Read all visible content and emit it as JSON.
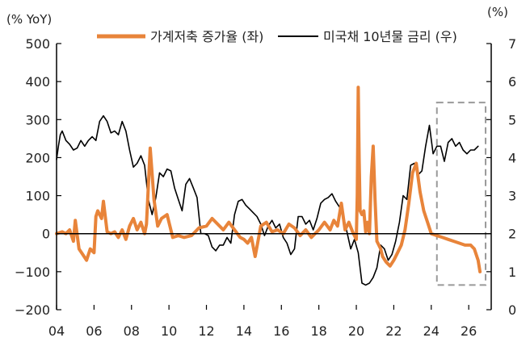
{
  "chart_data": {
    "type": "line",
    "title": "",
    "left_axis": {
      "unit_label": "(% YoY)",
      "range": [
        -200,
        500
      ],
      "ticks": [
        -200,
        -100,
        0,
        100,
        200,
        300,
        400,
        500
      ]
    },
    "right_axis": {
      "unit_label": "(%)",
      "range": [
        0,
        7
      ],
      "ticks": [
        0,
        1,
        2,
        3,
        4,
        5,
        6,
        7
      ]
    },
    "x_axis": {
      "range": [
        2004,
        2027.2
      ],
      "ticks": [
        2004,
        2006,
        2008,
        2010,
        2012,
        2014,
        2016,
        2018,
        2020,
        2022,
        2024,
        2026
      ],
      "tick_labels": [
        "04",
        "06",
        "08",
        "10",
        "12",
        "14",
        "16",
        "18",
        "20",
        "22",
        "24",
        "26"
      ]
    },
    "legend": {
      "placement": "top"
    },
    "colors": {
      "savings": "#E8843A",
      "yield": "#000000",
      "box": "#999999",
      "axis": "#000000"
    },
    "series": [
      {
        "name": "가계저축 증가율 (좌)",
        "axis": "left",
        "x": [
          2004.0,
          2004.3,
          2004.5,
          2004.7,
          2004.9,
          2005.0,
          2005.2,
          2005.4,
          2005.6,
          2005.8,
          2006.0,
          2006.1,
          2006.2,
          2006.4,
          2006.5,
          2006.7,
          2006.9,
          2007.1,
          2007.3,
          2007.5,
          2007.7,
          2007.9,
          2008.1,
          2008.3,
          2008.5,
          2008.7,
          2008.8,
          2009.0,
          2009.2,
          2009.4,
          2009.6,
          2009.9,
          2010.2,
          2010.5,
          2010.8,
          2011.2,
          2011.6,
          2012.0,
          2012.3,
          2012.6,
          2012.9,
          2013.2,
          2013.5,
          2013.8,
          2014.0,
          2014.2,
          2014.4,
          2014.6,
          2014.9,
          2015.2,
          2015.5,
          2015.8,
          2016.1,
          2016.4,
          2016.7,
          2017.0,
          2017.3,
          2017.6,
          2018.0,
          2018.3,
          2018.6,
          2018.8,
          2019.0,
          2019.2,
          2019.4,
          2019.6,
          2019.8,
          2019.9,
          2020.0,
          2020.05,
          2020.1,
          2020.15,
          2020.2,
          2020.3,
          2020.4,
          2020.5,
          2020.6,
          2020.7,
          2020.8,
          2020.9,
          2021.0,
          2021.1,
          2021.2,
          2021.3,
          2021.4,
          2021.6,
          2021.8,
          2022.0,
          2022.2,
          2022.4,
          2022.6,
          2022.8,
          2023.0,
          2023.2,
          2023.4,
          2023.6,
          2023.8,
          2024.0,
          2024.3,
          2024.6,
          2024.9,
          2025.2,
          2025.5,
          2025.8,
          2026.1,
          2026.3,
          2026.5,
          2026.6
        ],
        "y": [
          0,
          5,
          0,
          10,
          -20,
          35,
          -40,
          -55,
          -70,
          -40,
          -50,
          45,
          60,
          40,
          85,
          5,
          0,
          5,
          -10,
          10,
          -15,
          20,
          40,
          10,
          30,
          0,
          25,
          225,
          90,
          20,
          40,
          50,
          -10,
          -5,
          -10,
          -5,
          15,
          20,
          40,
          25,
          10,
          30,
          10,
          -10,
          -15,
          -25,
          -10,
          -60,
          20,
          30,
          5,
          10,
          0,
          25,
          15,
          -5,
          10,
          -10,
          10,
          30,
          10,
          35,
          20,
          80,
          10,
          30,
          5,
          -5,
          -15,
          100,
          385,
          200,
          60,
          50,
          60,
          5,
          30,
          0,
          150,
          230,
          90,
          -20,
          -30,
          -40,
          -60,
          -75,
          -85,
          -70,
          -50,
          -30,
          10,
          80,
          160,
          185,
          110,
          60,
          30,
          0,
          -5,
          -10,
          -15,
          -20,
          -25,
          -30,
          -30,
          -40,
          -70,
          -100
        ]
      },
      {
        "name": "미국채 10년물 금리 (우)",
        "axis": "right",
        "x": [
          2004.0,
          2004.1,
          2004.2,
          2004.3,
          2004.5,
          2004.7,
          2004.9,
          2005.1,
          2005.3,
          2005.5,
          2005.7,
          2005.9,
          2006.1,
          2006.3,
          2006.5,
          2006.7,
          2006.9,
          2007.1,
          2007.3,
          2007.5,
          2007.7,
          2007.9,
          2008.1,
          2008.3,
          2008.5,
          2008.7,
          2008.9,
          2009.1,
          2009.3,
          2009.5,
          2009.7,
          2009.9,
          2010.1,
          2010.3,
          2010.5,
          2010.7,
          2010.9,
          2011.1,
          2011.3,
          2011.5,
          2011.7,
          2011.9,
          2012.1,
          2012.3,
          2012.5,
          2012.7,
          2012.9,
          2013.1,
          2013.3,
          2013.5,
          2013.7,
          2013.9,
          2014.1,
          2014.3,
          2014.5,
          2014.7,
          2014.9,
          2015.1,
          2015.3,
          2015.5,
          2015.7,
          2015.9,
          2016.1,
          2016.3,
          2016.5,
          2016.7,
          2016.9,
          2017.1,
          2017.3,
          2017.5,
          2017.7,
          2017.9,
          2018.1,
          2018.3,
          2018.5,
          2018.7,
          2018.9,
          2019.1,
          2019.3,
          2019.5,
          2019.7,
          2019.9,
          2020.1,
          2020.3,
          2020.5,
          2020.7,
          2020.9,
          2021.1,
          2021.3,
          2021.5,
          2021.7,
          2021.9,
          2022.1,
          2022.3,
          2022.5,
          2022.7,
          2022.9,
          2023.1,
          2023.3,
          2023.5,
          2023.7,
          2023.9,
          2024.1,
          2024.3,
          2024.5,
          2024.7,
          2024.9,
          2025.1,
          2025.3,
          2025.5,
          2025.7,
          2025.9,
          2026.1,
          2026.3,
          2026.5
        ],
        "y": [
          3.95,
          4.3,
          4.6,
          4.7,
          4.45,
          4.35,
          4.2,
          4.25,
          4.45,
          4.3,
          4.45,
          4.55,
          4.45,
          4.95,
          5.1,
          4.95,
          4.65,
          4.7,
          4.6,
          4.95,
          4.7,
          4.2,
          3.75,
          3.85,
          4.05,
          3.8,
          2.9,
          2.5,
          2.95,
          3.6,
          3.5,
          3.7,
          3.65,
          3.2,
          2.9,
          2.6,
          3.3,
          3.45,
          3.2,
          2.95,
          2.0,
          2.0,
          1.95,
          1.65,
          1.55,
          1.7,
          1.7,
          1.9,
          1.75,
          2.5,
          2.85,
          2.9,
          2.75,
          2.65,
          2.55,
          2.45,
          2.25,
          1.95,
          2.2,
          2.35,
          2.15,
          2.25,
          1.9,
          1.75,
          1.45,
          1.6,
          2.45,
          2.45,
          2.25,
          2.35,
          2.1,
          2.4,
          2.8,
          2.9,
          2.95,
          3.05,
          2.85,
          2.7,
          2.5,
          2.05,
          1.6,
          1.85,
          1.5,
          0.7,
          0.65,
          0.7,
          0.85,
          1.1,
          1.7,
          1.6,
          1.3,
          1.45,
          1.8,
          2.3,
          3.0,
          2.9,
          3.8,
          3.85,
          3.55,
          3.65,
          4.3,
          4.85,
          4.1,
          4.3,
          4.3,
          3.9,
          4.4,
          4.5,
          4.3,
          4.4,
          4.2,
          4.1,
          4.2,
          4.2,
          4.3
        ]
      }
    ],
    "annotations": [
      {
        "type": "dashed-box",
        "x_range": [
          2024.3,
          2026.9
        ],
        "left_y_range": [
          -135,
          345
        ]
      }
    ]
  }
}
